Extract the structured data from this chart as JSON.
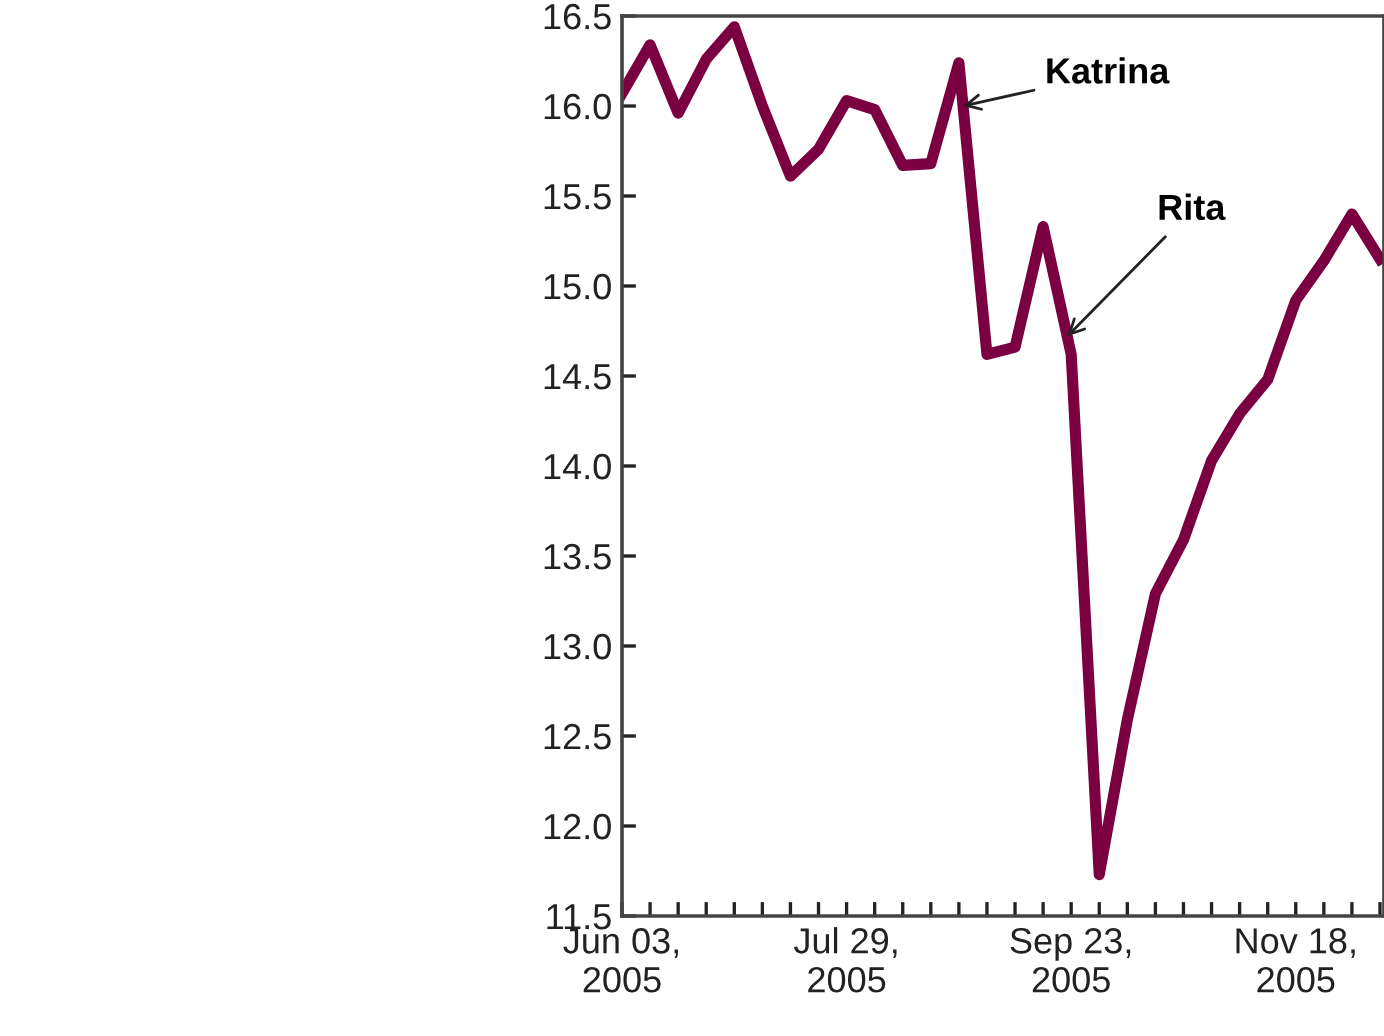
{
  "chart_data": {
    "type": "line",
    "x": [
      "2005-06-03",
      "2005-06-10",
      "2005-06-17",
      "2005-06-24",
      "2005-07-01",
      "2005-07-08",
      "2005-07-15",
      "2005-07-22",
      "2005-07-29",
      "2005-08-05",
      "2005-08-12",
      "2005-08-19",
      "2005-08-26",
      "2005-09-02",
      "2005-09-09",
      "2005-09-16",
      "2005-09-23",
      "2005-09-30",
      "2005-10-07",
      "2005-10-14",
      "2005-10-21",
      "2005-10-28",
      "2005-11-04",
      "2005-11-11",
      "2005-11-18",
      "2005-11-25",
      "2005-12-02",
      "2005-12-09"
    ],
    "series": [
      {
        "color": "#7b0041",
        "values": [
          16.07,
          16.34,
          15.96,
          16.26,
          16.44,
          16.0,
          15.61,
          15.76,
          16.03,
          15.98,
          15.67,
          15.68,
          16.24,
          14.62,
          14.66,
          15.33,
          14.62,
          11.73,
          12.59,
          13.29,
          13.59,
          14.03,
          14.29,
          14.48,
          14.92,
          15.14,
          15.4,
          15.15
        ]
      }
    ],
    "annotations": [
      {
        "text": "Katrina",
        "x": "2005-08-27",
        "y": 16.0
      },
      {
        "text": "Rita",
        "x": "2005-09-22",
        "y": 14.72
      }
    ],
    "xlim": [
      "2005-06-03",
      "2005-12-10"
    ],
    "xticks": [
      {
        "value": "2005-06-03",
        "label": "Jun 03,\n2005"
      },
      {
        "value": "2005-06-10",
        "label": null
      },
      {
        "value": "2005-06-17",
        "label": null
      },
      {
        "value": "2005-06-24",
        "label": null
      },
      {
        "value": "2005-07-01",
        "label": null
      },
      {
        "value": "2005-07-08",
        "label": null
      },
      {
        "value": "2005-07-15",
        "label": null
      },
      {
        "value": "2005-07-22",
        "label": null
      },
      {
        "value": "2005-07-29",
        "label": "Jul 29,\n2005"
      },
      {
        "value": "2005-08-05",
        "label": null
      },
      {
        "value": "2005-08-12",
        "label": null
      },
      {
        "value": "2005-08-19",
        "label": null
      },
      {
        "value": "2005-08-26",
        "label": null
      },
      {
        "value": "2005-09-02",
        "label": null
      },
      {
        "value": "2005-09-09",
        "label": null
      },
      {
        "value": "2005-09-16",
        "label": null
      },
      {
        "value": "2005-09-23",
        "label": "Sep 23,\n2005"
      },
      {
        "value": "2005-09-30",
        "label": null
      },
      {
        "value": "2005-10-07",
        "label": null
      },
      {
        "value": "2005-10-14",
        "label": null
      },
      {
        "value": "2005-10-21",
        "label": null
      },
      {
        "value": "2005-10-28",
        "label": null
      },
      {
        "value": "2005-11-04",
        "label": null
      },
      {
        "value": "2005-11-11",
        "label": null
      },
      {
        "value": "2005-11-18",
        "label": "Nov 18,\n2005"
      },
      {
        "value": "2005-11-25",
        "label": null
      },
      {
        "value": "2005-12-02",
        "label": null
      },
      {
        "value": "2005-12-09",
        "label": null
      }
    ],
    "ylim": [
      11.5,
      16.5
    ],
    "yticks": [
      {
        "value": 11.5,
        "label": "11.5"
      },
      {
        "value": 12.0,
        "label": "12.0"
      },
      {
        "value": 12.5,
        "label": "12.5"
      },
      {
        "value": 13.0,
        "label": "13.0"
      },
      {
        "value": 13.5,
        "label": "13.5"
      },
      {
        "value": 14.0,
        "label": "14.0"
      },
      {
        "value": 14.5,
        "label": "14.5"
      },
      {
        "value": 15.0,
        "label": "15.0"
      },
      {
        "value": 15.5,
        "label": "15.5"
      },
      {
        "value": 16.0,
        "label": "16.0"
      },
      {
        "value": 16.5,
        "label": "16.5"
      }
    ],
    "grid": false,
    "legend": false,
    "marker": "none",
    "line_style": "solid"
  }
}
